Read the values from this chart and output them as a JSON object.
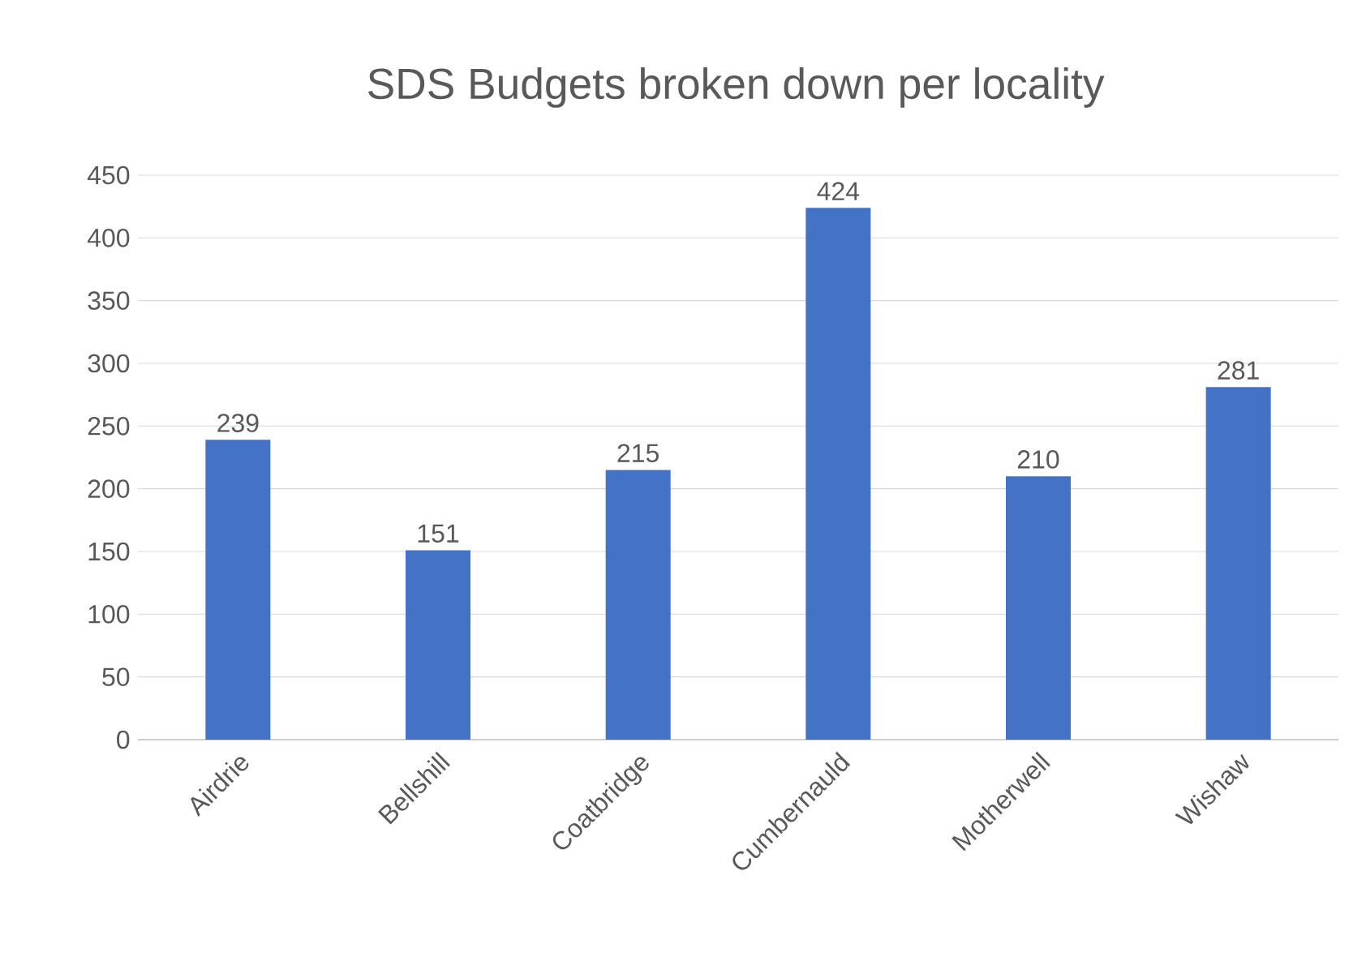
{
  "chart_data": {
    "type": "bar",
    "title": "SDS Budgets broken down per locality",
    "categories": [
      "Airdrie",
      "Bellshill",
      "Coatbridge",
      "Cumbernauld",
      "Motherwell",
      "Wishaw"
    ],
    "values": [
      239,
      151,
      215,
      424,
      210,
      281
    ],
    "color": "#4472c4",
    "ylim": [
      0,
      450
    ],
    "yticks": [
      0,
      50,
      100,
      150,
      200,
      250,
      300,
      350,
      400,
      450
    ],
    "grid": "y",
    "data_labels": true
  }
}
